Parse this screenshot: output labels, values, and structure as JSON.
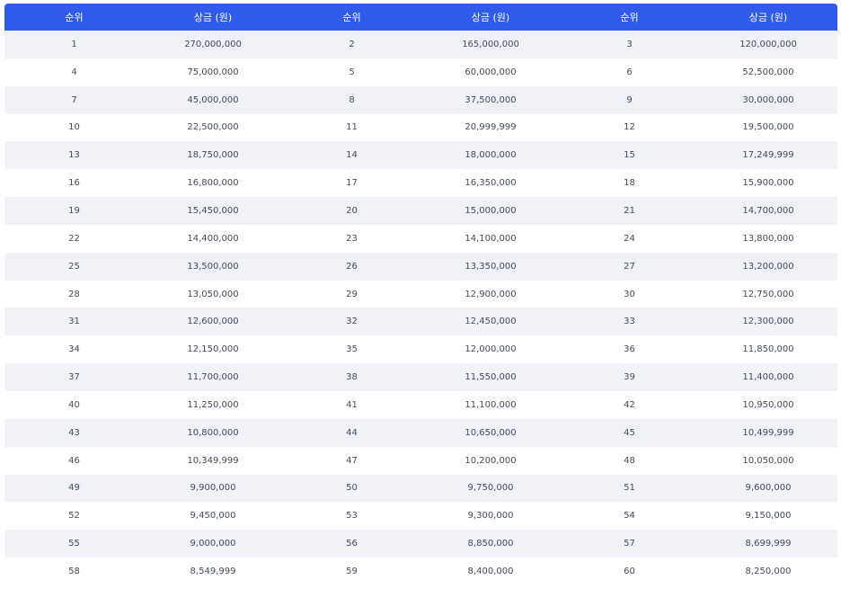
{
  "headers": [
    "순위",
    "상금 (원)",
    "순위",
    "상금 (원)",
    "순위",
    "상금 (원)"
  ],
  "rows": [
    [
      "1",
      "270,000,000",
      "2",
      "165,000,000",
      "3",
      "120,000,000"
    ],
    [
      "4",
      "75,000,000",
      "5",
      "60,000,000",
      "6",
      "52,500,000"
    ],
    [
      "7",
      "45,000,000",
      "8",
      "37,500,000",
      "9",
      "30,000,000"
    ],
    [
      "10",
      "22,500,000",
      "11",
      "20,999,999",
      "12",
      "19,500,000"
    ],
    [
      "13",
      "18,750,000",
      "14",
      "18,000,000",
      "15",
      "17,249,999"
    ],
    [
      "16",
      "16,800,000",
      "17",
      "16,350,000",
      "18",
      "15,900,000"
    ],
    [
      "19",
      "15,450,000",
      "20",
      "15,000,000",
      "21",
      "14,700,000"
    ],
    [
      "22",
      "14,400,000",
      "23",
      "14,100,000",
      "24",
      "13,800,000"
    ],
    [
      "25",
      "13,500,000",
      "26",
      "13,350,000",
      "27",
      "13,200,000"
    ],
    [
      "28",
      "13,050,000",
      "29",
      "12,900,000",
      "30",
      "12,750,000"
    ],
    [
      "31",
      "12,600,000",
      "32",
      "12,450,000",
      "33",
      "12,300,000"
    ],
    [
      "34",
      "12,150,000",
      "35",
      "12,000,000",
      "36",
      "11,850,000"
    ],
    [
      "37",
      "11,700,000",
      "38",
      "11,550,000",
      "39",
      "11,400,000"
    ],
    [
      "40",
      "11,250,000",
      "41",
      "11,100,000",
      "42",
      "10,950,000"
    ],
    [
      "43",
      "10,800,000",
      "44",
      "10,650,000",
      "45",
      "10,499,999"
    ],
    [
      "46",
      "10,349,999",
      "47",
      "10,200,000",
      "48",
      "10,050,000"
    ],
    [
      "49",
      "9,900,000",
      "50",
      "9,750,000",
      "51",
      "9,600,000"
    ],
    [
      "52",
      "9,450,000",
      "53",
      "9,300,000",
      "54",
      "9,150,000"
    ],
    [
      "55",
      "9,000,000",
      "56",
      "8,850,000",
      "57",
      "8,699,999"
    ],
    [
      "58",
      "8,549,999",
      "59",
      "8,400,000",
      "60",
      "8,250,000"
    ]
  ],
  "colors": {
    "header_bg": "#2f5be8",
    "header_text": "#ffffff",
    "stripe_bg": "#f0f2f7",
    "row_bg": "#ffffff",
    "cell_text": "#444b57"
  }
}
